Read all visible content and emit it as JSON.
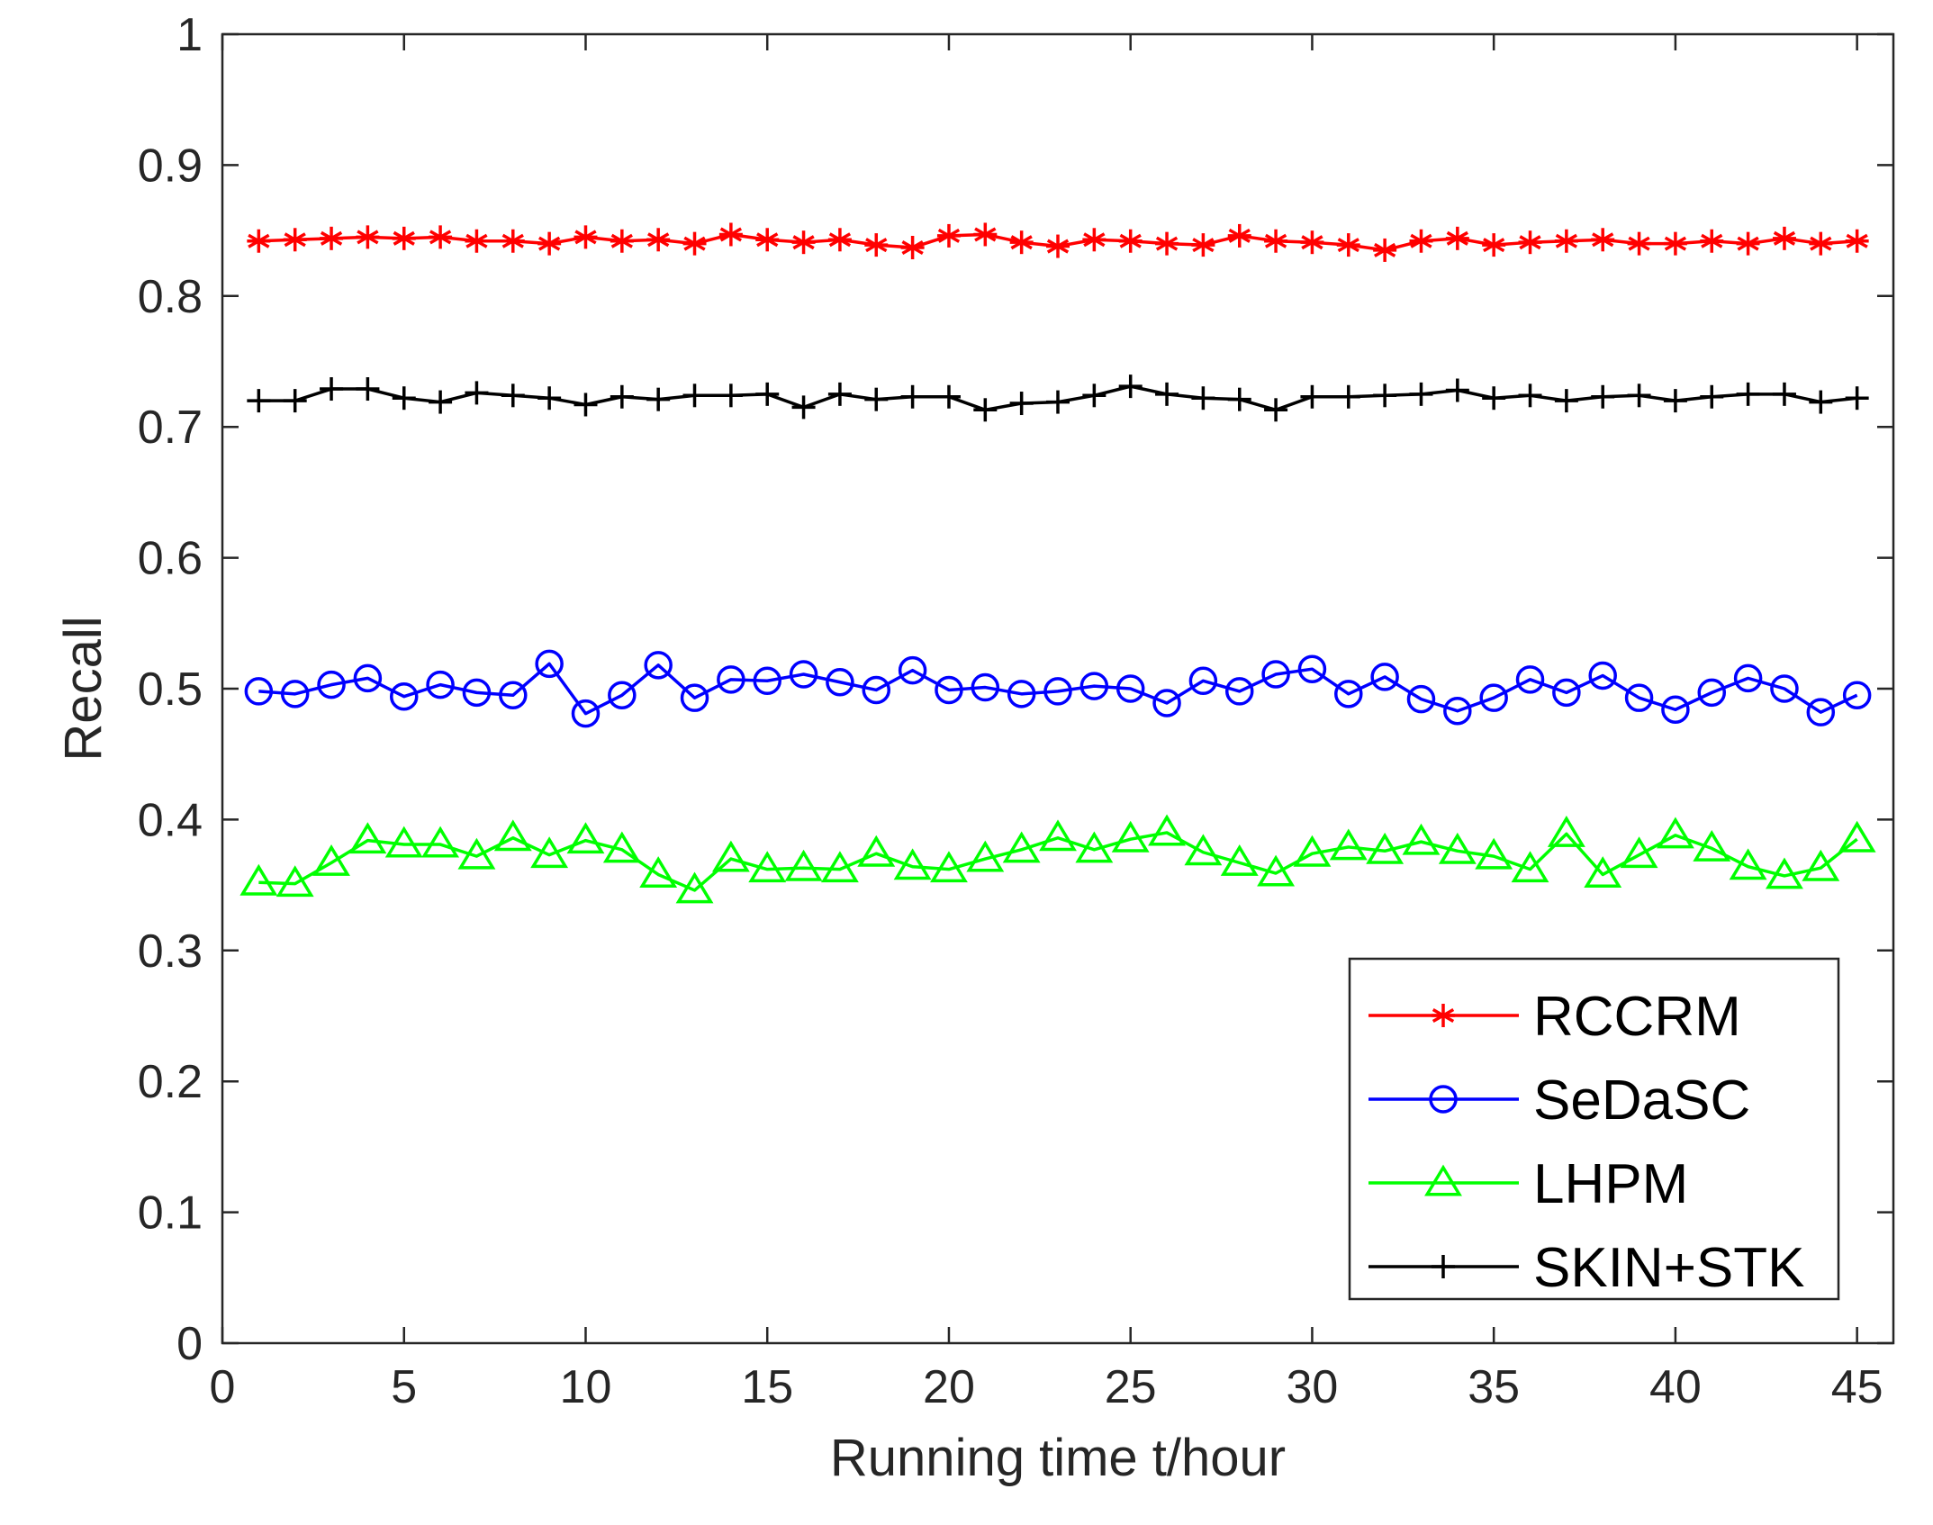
{
  "chart_data": {
    "type": "line",
    "title": "",
    "xlabel": "Running time t/hour",
    "ylabel": "Recall",
    "xlim": [
      0,
      46
    ],
    "ylim": [
      0,
      1
    ],
    "xticks": [
      0,
      5,
      10,
      15,
      20,
      25,
      30,
      35,
      40,
      45
    ],
    "xtick_labels": [
      "0",
      "5",
      "10",
      "15",
      "20",
      "25",
      "30",
      "35",
      "40",
      "45"
    ],
    "yticks": [
      0,
      0.1,
      0.2,
      0.3,
      0.4,
      0.5,
      0.6,
      0.7,
      0.8,
      0.9,
      1
    ],
    "ytick_labels": [
      "0",
      "0.1",
      "0.2",
      "0.3",
      "0.4",
      "0.5",
      "0.6",
      "0.7",
      "0.8",
      "0.9",
      "1"
    ],
    "grid": false,
    "legend_position": "bottom-right",
    "x": [
      1,
      2,
      3,
      4,
      5,
      6,
      7,
      8,
      9,
      10,
      11,
      12,
      13,
      14,
      15,
      16,
      17,
      18,
      19,
      20,
      21,
      22,
      23,
      24,
      25,
      26,
      27,
      28,
      29,
      30,
      31,
      32,
      33,
      34,
      35,
      36,
      37,
      38,
      39,
      40,
      41,
      42,
      43,
      44,
      45
    ],
    "series": [
      {
        "name": "RCCRM",
        "color": "#ff0000",
        "marker": "asterisk",
        "values": [
          0.842,
          0.843,
          0.844,
          0.845,
          0.844,
          0.845,
          0.842,
          0.842,
          0.84,
          0.845,
          0.842,
          0.843,
          0.84,
          0.847,
          0.843,
          0.841,
          0.843,
          0.839,
          0.837,
          0.846,
          0.847,
          0.841,
          0.838,
          0.843,
          0.842,
          0.84,
          0.839,
          0.846,
          0.842,
          0.841,
          0.839,
          0.835,
          0.842,
          0.844,
          0.839,
          0.841,
          0.842,
          0.843,
          0.84,
          0.84,
          0.842,
          0.84,
          0.844,
          0.84,
          0.842
        ]
      },
      {
        "name": "SeDaSC",
        "color": "#0000ff",
        "marker": "circle",
        "values": [
          0.498,
          0.496,
          0.503,
          0.508,
          0.494,
          0.503,
          0.497,
          0.495,
          0.519,
          0.481,
          0.495,
          0.518,
          0.493,
          0.507,
          0.506,
          0.511,
          0.505,
          0.499,
          0.514,
          0.499,
          0.501,
          0.496,
          0.498,
          0.502,
          0.5,
          0.489,
          0.506,
          0.498,
          0.511,
          0.515,
          0.496,
          0.509,
          0.492,
          0.483,
          0.493,
          0.507,
          0.497,
          0.51,
          0.493,
          0.484,
          0.497,
          0.508,
          0.5,
          0.482,
          0.495
        ]
      },
      {
        "name": "LHPM",
        "color": "#00ff00",
        "marker": "triangle",
        "values": [
          0.352,
          0.351,
          0.367,
          0.384,
          0.381,
          0.381,
          0.372,
          0.386,
          0.373,
          0.384,
          0.377,
          0.358,
          0.346,
          0.37,
          0.362,
          0.363,
          0.362,
          0.374,
          0.364,
          0.362,
          0.37,
          0.377,
          0.386,
          0.377,
          0.385,
          0.39,
          0.375,
          0.367,
          0.359,
          0.374,
          0.379,
          0.376,
          0.383,
          0.376,
          0.372,
          0.362,
          0.389,
          0.358,
          0.373,
          0.388,
          0.378,
          0.364,
          0.357,
          0.363,
          0.385
        ]
      },
      {
        "name": "SKIN+STK",
        "color": "#000000",
        "marker": "plus",
        "values": [
          0.72,
          0.72,
          0.729,
          0.729,
          0.722,
          0.719,
          0.726,
          0.724,
          0.722,
          0.717,
          0.723,
          0.721,
          0.724,
          0.724,
          0.725,
          0.715,
          0.725,
          0.721,
          0.723,
          0.723,
          0.713,
          0.718,
          0.719,
          0.724,
          0.731,
          0.725,
          0.722,
          0.721,
          0.713,
          0.723,
          0.723,
          0.724,
          0.725,
          0.728,
          0.722,
          0.724,
          0.72,
          0.723,
          0.724,
          0.72,
          0.723,
          0.725,
          0.725,
          0.719,
          0.722
        ]
      }
    ]
  }
}
